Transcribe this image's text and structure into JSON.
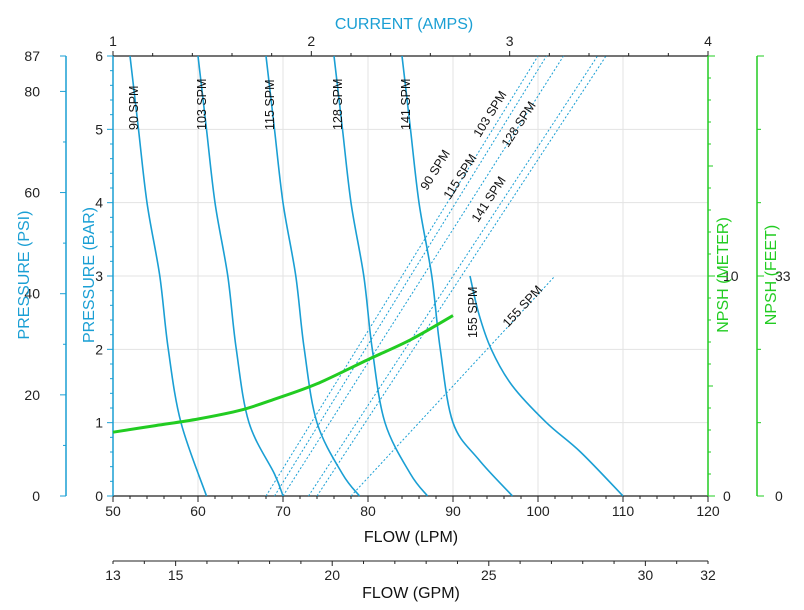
{
  "colors": {
    "blue": "#1a9fd4",
    "green": "#22cc22",
    "grid": "#e3e3e3",
    "axis": "#222222",
    "text": "#111111"
  },
  "labels": {
    "current": "CURRENT (AMPS)",
    "pressure_psi": "PRESSURE (PSI)",
    "pressure_bar": "PRESSURE (BAR)",
    "npsh_meter": "NPSH (METER)",
    "npsh_feet": "NPSH (FEET)",
    "flow_lpm": "FLOW (LPM)",
    "flow_gpm": "FLOW (GPM)"
  },
  "chart_data": {
    "type": "line",
    "x_axis": {
      "label": "FLOW (LPM)",
      "lim": [
        50,
        120
      ],
      "ticks": [
        50,
        60,
        70,
        80,
        90,
        100,
        110,
        120
      ]
    },
    "x_axis_gpm": {
      "label": "FLOW (GPM)",
      "lim": [
        13,
        32
      ],
      "ticks": [
        13,
        15,
        20,
        25,
        30,
        32
      ]
    },
    "x_axis_top": {
      "label": "CURRENT (AMPS)",
      "lim": [
        1,
        4
      ],
      "ticks": [
        1,
        2,
        3,
        4
      ]
    },
    "y_axis_bar": {
      "label": "PRESSURE (BAR)",
      "lim": [
        0,
        6
      ],
      "ticks": [
        0,
        1,
        2,
        3,
        4,
        5,
        6
      ]
    },
    "y_axis_psi": {
      "label": "PRESSURE (PSI)",
      "lim": [
        0,
        87
      ],
      "ticks": [
        0,
        20,
        40,
        60,
        80,
        87
      ]
    },
    "y_axis_npsh_m": {
      "label": "NPSH (METER)",
      "lim": [
        0,
        20
      ],
      "ticks": [
        0,
        10
      ]
    },
    "y_axis_npsh_ft": {
      "label": "NPSH (FEET)",
      "lim": [
        0,
        66
      ],
      "ticks": [
        0,
        33
      ]
    },
    "pressure_curves": [
      {
        "name": "90 SPM",
        "points": [
          [
            52.0,
            6
          ],
          [
            53.0,
            5
          ],
          [
            54.0,
            4
          ],
          [
            55.5,
            3
          ],
          [
            56.5,
            2
          ],
          [
            58.0,
            1
          ],
          [
            61.0,
            0
          ]
        ]
      },
      {
        "name": "103 SPM",
        "points": [
          [
            60.0,
            6
          ],
          [
            61.0,
            5
          ],
          [
            62.0,
            4
          ],
          [
            63.5,
            3
          ],
          [
            64.5,
            2
          ],
          [
            66.0,
            1
          ],
          [
            69.0,
            0.3
          ],
          [
            70.0,
            0
          ]
        ]
      },
      {
        "name": "115 SPM",
        "points": [
          [
            68.0,
            6
          ],
          [
            69.0,
            5
          ],
          [
            70.0,
            4
          ],
          [
            71.5,
            3
          ],
          [
            72.5,
            2
          ],
          [
            74.0,
            1
          ],
          [
            77.0,
            0.3
          ],
          [
            79.0,
            0
          ]
        ]
      },
      {
        "name": "128 SPM",
        "points": [
          [
            76.0,
            6
          ],
          [
            77.0,
            5
          ],
          [
            78.0,
            4
          ],
          [
            79.5,
            3
          ],
          [
            80.5,
            2
          ],
          [
            82.0,
            1
          ],
          [
            85.0,
            0.3
          ],
          [
            87.0,
            0
          ]
        ]
      },
      {
        "name": "141 SPM",
        "points": [
          [
            84.0,
            6
          ],
          [
            85.0,
            5
          ],
          [
            86.0,
            4
          ],
          [
            87.5,
            3
          ],
          [
            88.5,
            2
          ],
          [
            90.0,
            1
          ],
          [
            93.0,
            0.5
          ],
          [
            97.0,
            0
          ]
        ]
      },
      {
        "name": "155 SPM",
        "points": [
          [
            92.0,
            3
          ],
          [
            93.0,
            2.5
          ],
          [
            94.5,
            2
          ],
          [
            97.0,
            1.5
          ],
          [
            101.0,
            1
          ],
          [
            105.0,
            0.6
          ],
          [
            110.0,
            0
          ]
        ]
      }
    ],
    "current_curves": [
      {
        "name": "90 SPM",
        "points": [
          [
            68.0,
            0
          ],
          [
            100.0,
            6
          ]
        ]
      },
      {
        "name": "103 SPM",
        "points": [
          [
            69.0,
            0
          ],
          [
            101.0,
            6
          ]
        ]
      },
      {
        "name": "115 SPM",
        "points": [
          [
            70.0,
            0
          ],
          [
            103.0,
            6
          ]
        ]
      },
      {
        "name": "128 SPM",
        "points": [
          [
            73.0,
            0
          ],
          [
            107.0,
            6
          ]
        ]
      },
      {
        "name": "141 SPM",
        "points": [
          [
            74.0,
            0
          ],
          [
            108.0,
            6
          ]
        ]
      },
      {
        "name": "155 SPM",
        "points": [
          [
            78.0,
            0
          ],
          [
            102.0,
            3
          ]
        ]
      }
    ],
    "npsh_curve": {
      "points": [
        [
          50,
          2.9
        ],
        [
          55,
          3.2
        ],
        [
          60,
          3.5
        ],
        [
          65,
          3.9
        ],
        [
          69,
          4.4
        ],
        [
          74,
          5.1
        ],
        [
          80,
          6.2
        ],
        [
          85,
          7.1
        ],
        [
          90,
          8.2
        ]
      ]
    }
  }
}
